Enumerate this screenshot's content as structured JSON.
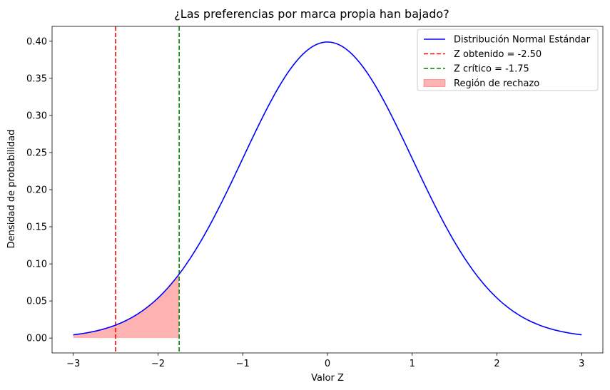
{
  "chart_data": {
    "type": "line",
    "title": "¿Las preferencias por marca propia han bajado?",
    "xlabel": "Valor Z",
    "ylabel": "Densidad de probabilidad",
    "xlim": [
      -3.25,
      3.25
    ],
    "ylim": [
      -0.02,
      0.42
    ],
    "x_ticks": [
      -3,
      -2,
      -1,
      0,
      1,
      2,
      3
    ],
    "x_tick_labels": [
      "−3",
      "−2",
      "−1",
      "0",
      "1",
      "2",
      "3"
    ],
    "y_ticks": [
      0.0,
      0.05,
      0.1,
      0.15,
      0.2,
      0.25,
      0.3,
      0.35,
      0.4
    ],
    "y_tick_labels": [
      "0.00",
      "0.05",
      "0.10",
      "0.15",
      "0.20",
      "0.25",
      "0.30",
      "0.35",
      "0.40"
    ],
    "grid": false,
    "legend_position": "top-right",
    "series": [
      {
        "name": "Distribución Normal Estándar",
        "kind": "line",
        "color": "#0000ff",
        "x": [
          -3.0,
          -2.75,
          -2.5,
          -2.25,
          -2.0,
          -1.75,
          -1.5,
          -1.25,
          -1.0,
          -0.75,
          -0.5,
          -0.25,
          0.0,
          0.25,
          0.5,
          0.75,
          1.0,
          1.25,
          1.5,
          1.75,
          2.0,
          2.25,
          2.5,
          2.75,
          3.0
        ],
        "y": [
          0.0044,
          0.0091,
          0.0175,
          0.0317,
          0.054,
          0.0863,
          0.1295,
          0.1826,
          0.242,
          0.3011,
          0.3521,
          0.3867,
          0.3989,
          0.3867,
          0.3521,
          0.3011,
          0.242,
          0.1826,
          0.1295,
          0.0863,
          0.054,
          0.0317,
          0.0175,
          0.0091,
          0.0044
        ]
      },
      {
        "name": "Z obtenido = -2.50",
        "kind": "vline",
        "x": -2.5,
        "color": "#ff0000",
        "style": "dashed"
      },
      {
        "name": "Z crítico = -1.75",
        "kind": "vline",
        "x": -1.75,
        "color": "#008000",
        "style": "dashed"
      },
      {
        "name": "Región de rechazo",
        "kind": "area",
        "color": "#ff0000",
        "alpha": 0.3,
        "x_range": [
          -3.0,
          -1.75
        ]
      }
    ]
  }
}
